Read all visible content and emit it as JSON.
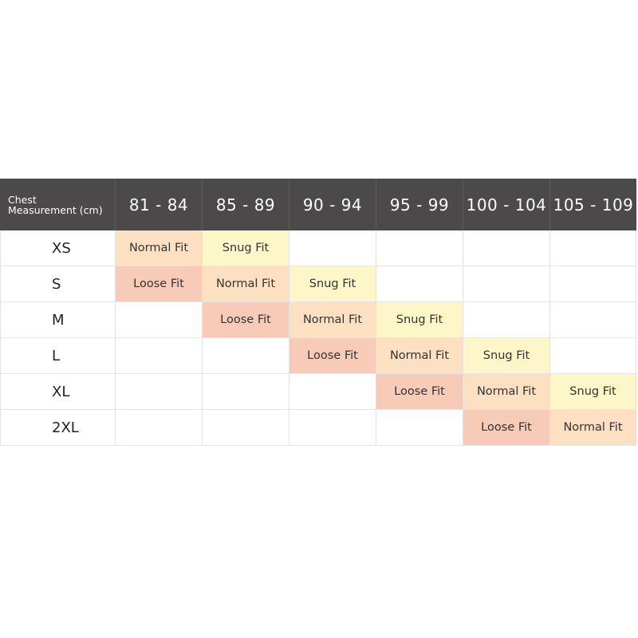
{
  "header": {
    "label": "Chest\nMeasurement (cm)",
    "ranges": [
      "81 - 84",
      "85 - 89",
      "90 - 94",
      "95 - 99",
      "100 - 104",
      "105 - 109"
    ]
  },
  "colors": {
    "Normal Fit": "#fde0c2",
    "Snug Fit": "#fcf6c8",
    "Loose Fit": "#f8cbb9",
    "header": "#4b4949"
  },
  "rows": [
    {
      "size": "XS",
      "cells": [
        "Normal Fit",
        "Snug Fit",
        "",
        "",
        "",
        ""
      ]
    },
    {
      "size": "S",
      "cells": [
        "Loose Fit",
        "Normal Fit",
        "Snug Fit",
        "",
        "",
        ""
      ]
    },
    {
      "size": "M",
      "cells": [
        "",
        "Loose Fit",
        "Normal Fit",
        "Snug Fit",
        "",
        ""
      ]
    },
    {
      "size": "L",
      "cells": [
        "",
        "",
        "Loose Fit",
        "Normal Fit",
        "Snug Fit",
        ""
      ]
    },
    {
      "size": "XL",
      "cells": [
        "",
        "",
        "",
        "Loose Fit",
        "Normal Fit",
        "Snug Fit"
      ]
    },
    {
      "size": "2XL",
      "cells": [
        "",
        "",
        "",
        "",
        "Loose Fit",
        "Normal Fit"
      ]
    }
  ]
}
